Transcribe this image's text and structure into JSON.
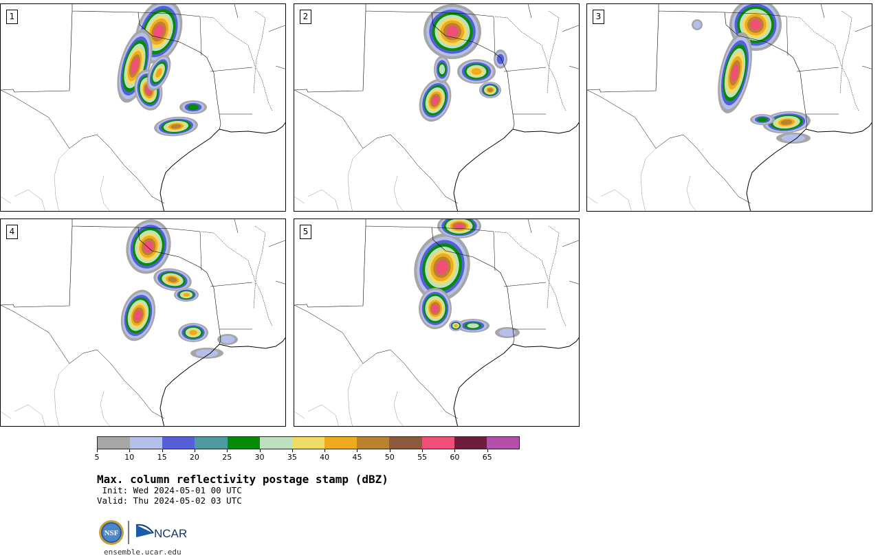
{
  "panels": [
    {
      "label": "1"
    },
    {
      "label": "2"
    },
    {
      "label": "3"
    },
    {
      "label": "4"
    },
    {
      "label": "5"
    }
  ],
  "colorbar": {
    "colors": [
      "#a6a6a6",
      "#b4bfeb",
      "#5560d8",
      "#4f9aa0",
      "#058a0a",
      "#bfe0bf",
      "#f0dc64",
      "#f0aa1e",
      "#b8822e",
      "#8c5a3c",
      "#f05078",
      "#6e1e3c",
      "#b450aa"
    ],
    "ticks": [
      "5",
      "10",
      "15",
      "20",
      "25",
      "30",
      "35",
      "40",
      "45",
      "50",
      "55",
      "60",
      "65"
    ]
  },
  "title": "Max. column reflectivity postage stamp (dBZ)",
  "init": " Init: Wed 2024-05-01 00 UTC",
  "valid": "Valid: Thu 2024-05-02 03 UTC",
  "logos": {
    "nsf": "NSF",
    "ncar": "NCAR"
  },
  "url": "ensemble.ucar.edu"
}
